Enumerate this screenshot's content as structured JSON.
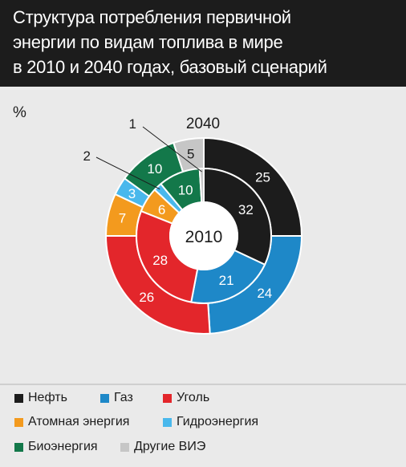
{
  "title_lines": [
    "Структура потребления первичной",
    "энергии по видам топлива в мире",
    "в 2010 и 2040 годах, базовый сценарий"
  ],
  "chart_data": {
    "type": "donut",
    "unit_label": "%",
    "center_label": "2010",
    "outer_label": "2040",
    "categories": [
      "Нефть",
      "Газ",
      "Уголь",
      "Атомная энергия",
      "Гидроэнергия",
      "Биоэнергия",
      "Другие ВИЭ"
    ],
    "colors": [
      "#1c1c1c",
      "#1e88c8",
      "#e3262b",
      "#f39a1e",
      "#49b8ec",
      "#13784a",
      "#c6c6c6"
    ],
    "series": [
      {
        "name": "2010",
        "values": [
          32,
          21,
          28,
          6,
          2,
          10,
          1
        ]
      },
      {
        "name": "2040",
        "values": [
          25,
          24,
          26,
          7,
          3,
          10,
          5
        ]
      }
    ]
  },
  "legend": [
    {
      "label": "Нефть",
      "color": "#1c1c1c"
    },
    {
      "label": "Газ",
      "color": "#1e88c8"
    },
    {
      "label": "Уголь",
      "color": "#e3262b"
    },
    {
      "label": "Атомная энергия",
      "color": "#f39a1e"
    },
    {
      "label": "Гидроэнергия",
      "color": "#49b8ec"
    },
    {
      "label": "Биоэнергия",
      "color": "#13784a"
    },
    {
      "label": "Другие ВИЭ",
      "color": "#c6c6c6"
    }
  ]
}
